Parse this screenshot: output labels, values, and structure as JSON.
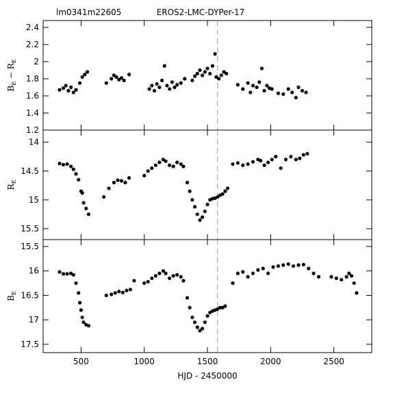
{
  "chart_data": [
    {
      "type": "scatter",
      "title": "EROS2-LMC-DYPer-17",
      "annotation": "lm0341m22605",
      "ylabel": [
        {
          "text": "B"
        },
        {
          "text": "E",
          "sub": true
        },
        {
          "text": " − R"
        },
        {
          "text": "E",
          "sub": true
        }
      ],
      "color": "#000000",
      "xlim": [
        200,
        2800
      ],
      "xticks": [
        500,
        1000,
        1500,
        2000,
        2500
      ],
      "show_xticklabels": false,
      "ylim": [
        1.2,
        2.48
      ],
      "yticks": [
        1.2,
        1.4,
        1.6,
        1.8,
        2,
        2.2,
        2.4
      ],
      "vline_x": 1580,
      "x": [
        330,
        360,
        380,
        400,
        420,
        440,
        460,
        490,
        510,
        530,
        550,
        700,
        740,
        760,
        780,
        800,
        820,
        840,
        880,
        1040,
        1060,
        1080,
        1100,
        1120,
        1140,
        1160,
        1180,
        1200,
        1220,
        1240,
        1260,
        1290,
        1320,
        1380,
        1400,
        1420,
        1440,
        1460,
        1480,
        1500,
        1520,
        1540,
        1560,
        1570,
        1590,
        1610,
        1630,
        1650,
        1740,
        1780,
        1820,
        1840,
        1860,
        1890,
        1910,
        1930,
        1950,
        1970,
        1990,
        2010,
        2060,
        2100,
        2140,
        2170,
        2200,
        2220,
        2250,
        2280
      ],
      "values": [
        1.67,
        1.69,
        1.72,
        1.66,
        1.7,
        1.64,
        1.67,
        1.75,
        1.82,
        1.85,
        1.88,
        1.75,
        1.8,
        1.84,
        1.82,
        1.79,
        1.81,
        1.78,
        1.85,
        1.68,
        1.72,
        1.66,
        1.74,
        1.7,
        1.78,
        1.95,
        1.72,
        1.68,
        1.76,
        1.7,
        1.73,
        1.75,
        1.8,
        1.78,
        1.83,
        1.86,
        1.9,
        1.84,
        1.88,
        1.92,
        1.86,
        1.95,
        2.09,
        1.82,
        1.8,
        1.84,
        1.88,
        1.86,
        1.73,
        1.68,
        1.75,
        1.64,
        1.72,
        1.7,
        1.76,
        1.92,
        1.66,
        1.72,
        1.69,
        1.68,
        1.63,
        1.62,
        1.68,
        1.64,
        1.58,
        1.7,
        1.66,
        1.64
      ]
    },
    {
      "type": "scatter",
      "ylabel": [
        {
          "text": "R"
        },
        {
          "text": "E",
          "sub": true
        }
      ],
      "color": "#000000",
      "xlim": [
        200,
        2800
      ],
      "xticks": [
        500,
        1000,
        1500,
        2000,
        2500
      ],
      "show_xticklabels": false,
      "ylim": [
        15.69,
        13.79
      ],
      "yticks": [
        14,
        14.5,
        15,
        15.5
      ],
      "vline_x": 1580,
      "x": [
        330,
        360,
        390,
        420,
        440,
        460,
        480,
        500,
        510,
        520,
        540,
        560,
        680,
        720,
        760,
        790,
        820,
        850,
        880,
        1000,
        1030,
        1060,
        1090,
        1120,
        1150,
        1170,
        1200,
        1230,
        1260,
        1290,
        1310,
        1340,
        1360,
        1380,
        1400,
        1420,
        1440,
        1460,
        1480,
        1500,
        1520,
        1540,
        1560,
        1580,
        1600,
        1620,
        1640,
        1660,
        1700,
        1740,
        1780,
        1820,
        1860,
        1900,
        1920,
        1950,
        1980,
        2010,
        2040,
        2080,
        2120,
        2160,
        2200,
        2230,
        2260,
        2290
      ],
      "values": [
        14.37,
        14.39,
        14.38,
        14.42,
        14.47,
        14.55,
        14.65,
        14.85,
        14.88,
        15.05,
        15.15,
        15.25,
        14.95,
        14.8,
        14.7,
        14.66,
        14.67,
        14.7,
        14.62,
        14.58,
        14.5,
        14.45,
        14.4,
        14.35,
        14.3,
        14.33,
        14.4,
        14.42,
        14.35,
        14.38,
        14.42,
        14.7,
        14.85,
        15.0,
        15.12,
        15.25,
        15.35,
        15.3,
        15.2,
        15.08,
        15.0,
        14.98,
        14.97,
        14.95,
        14.92,
        14.9,
        14.85,
        14.8,
        14.38,
        14.36,
        14.4,
        14.38,
        14.34,
        14.3,
        14.32,
        14.4,
        14.35,
        14.3,
        14.25,
        14.45,
        14.3,
        14.25,
        14.3,
        14.28,
        14.22,
        14.2
      ]
    },
    {
      "type": "scatter",
      "xlabel": "HJD - 2450000",
      "ylabel": [
        {
          "text": "B"
        },
        {
          "text": "E",
          "sub": true
        }
      ],
      "color": "#000000",
      "xlim": [
        200,
        2800
      ],
      "xticks": [
        500,
        1000,
        1500,
        2000,
        2500
      ],
      "show_xticklabels": true,
      "ylim": [
        17.67,
        15.36
      ],
      "yticks": [
        15.5,
        16,
        16.5,
        17,
        17.5
      ],
      "vline_x": 1580,
      "x": [
        330,
        360,
        390,
        420,
        440,
        460,
        480,
        490,
        500,
        510,
        520,
        540,
        560,
        700,
        740,
        770,
        800,
        830,
        860,
        890,
        920,
        1000,
        1030,
        1060,
        1090,
        1120,
        1150,
        1170,
        1200,
        1230,
        1260,
        1290,
        1310,
        1340,
        1360,
        1380,
        1400,
        1420,
        1440,
        1460,
        1480,
        1500,
        1520,
        1540,
        1560,
        1580,
        1600,
        1620,
        1640,
        1700,
        1740,
        1780,
        1820,
        1860,
        1900,
        1940,
        1980,
        2020,
        2060,
        2100,
        2140,
        2180,
        2220,
        2260,
        2300,
        2340,
        2380,
        2480,
        2520,
        2560,
        2600,
        2620,
        2640,
        2660,
        2680
      ],
      "values": [
        16.02,
        16.06,
        16.06,
        16.05,
        16.08,
        16.25,
        16.45,
        16.65,
        16.8,
        16.95,
        17.05,
        17.1,
        17.12,
        16.5,
        16.48,
        16.45,
        16.42,
        16.44,
        16.4,
        16.38,
        16.2,
        16.25,
        16.22,
        16.15,
        16.1,
        16.05,
        16.0,
        16.05,
        16.15,
        16.1,
        16.08,
        16.12,
        16.2,
        16.55,
        16.75,
        16.95,
        17.05,
        17.15,
        17.22,
        17.18,
        17.05,
        16.92,
        16.85,
        16.82,
        16.8,
        16.78,
        16.75,
        16.75,
        16.72,
        16.25,
        16.05,
        16.02,
        16.12,
        16.05,
        15.98,
        15.95,
        16.05,
        15.92,
        15.9,
        15.88,
        15.86,
        15.9,
        15.88,
        15.87,
        15.95,
        16.05,
        16.12,
        16.12,
        16.15,
        16.18,
        16.12,
        16.05,
        16.1,
        16.25,
        16.45
      ]
    }
  ]
}
